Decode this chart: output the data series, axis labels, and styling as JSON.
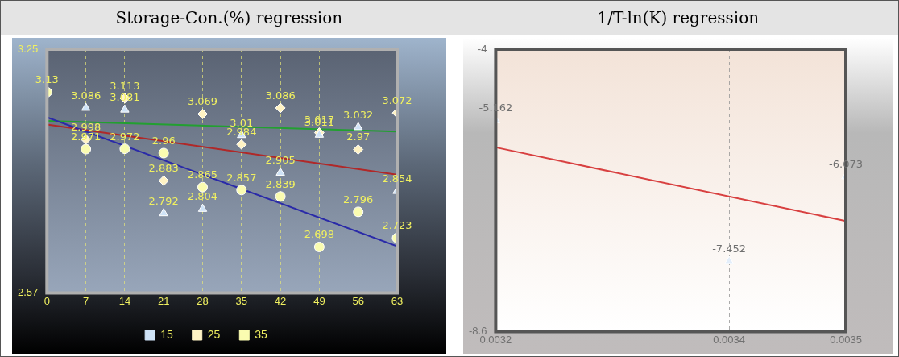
{
  "chart_data": [
    {
      "type": "scatter",
      "title": "Storage-Con.(%) regression",
      "x": [
        0,
        7,
        14,
        21,
        28,
        35,
        42,
        49,
        56,
        63
      ],
      "xlim": [
        0,
        63
      ],
      "xticks": [
        0,
        7,
        14,
        21,
        28,
        35,
        42,
        49,
        56,
        63
      ],
      "ylim": [
        2.57,
        3.25
      ],
      "yticks": [
        2.57,
        3.25
      ],
      "grid": "x",
      "legend": "bottom",
      "series": [
        {
          "name": "15",
          "color": "#cfe3f7",
          "marker": "triangle",
          "values": [
            null,
            3.086,
            3.081,
            2.792,
            2.804,
            3.01,
            2.905,
            3.011,
            3.032,
            2.854
          ],
          "value_labels": [
            null,
            "3.086",
            "3.081",
            "2.792",
            "2.804",
            "3.01",
            "2.905",
            "3.011",
            "3.032",
            "2.854"
          ]
        },
        {
          "name": "25",
          "color": "#fff3c4",
          "marker": "diamond",
          "values": [
            null,
            2.998,
            3.113,
            2.883,
            3.069,
            2.984,
            3.086,
            3.017,
            2.97,
            3.072
          ],
          "value_labels": [
            null,
            "2.998",
            "3.113",
            "2.883",
            "3.069",
            "2.984",
            "3.086",
            "3.017",
            "2.97",
            "3.072"
          ]
        },
        {
          "name": "35",
          "color": "#fafcb0",
          "marker": "circle",
          "values": [
            3.13,
            2.971,
            2.972,
            2.96,
            2.865,
            2.857,
            2.839,
            2.698,
            2.796,
            2.723
          ],
          "value_labels": [
            "3.13",
            "2.971",
            "2.972",
            "2.96",
            "2.865",
            "2.857",
            "2.839",
            "2.698",
            "2.796",
            "2.723"
          ]
        },
        {
          "type": "line",
          "color": "#2a2aa8",
          "marker": "none",
          "x": [
            0,
            63
          ],
          "values": [
            3.06,
            2.7
          ]
        },
        {
          "type": "line",
          "color": "#b02828",
          "marker": "none",
          "x": [
            0,
            63
          ],
          "values": [
            3.04,
            2.9
          ]
        },
        {
          "type": "line",
          "color": "#22a030",
          "marker": "none",
          "x": [
            0,
            63
          ],
          "values": [
            3.05,
            3.02
          ]
        }
      ]
    },
    {
      "type": "scatter",
      "title": "1/T-ln(K) regression",
      "x": [
        0.0032,
        0.0034,
        0.0035
      ],
      "xlim": [
        0.0032,
        0.0035
      ],
      "xticks": [
        0.0032,
        0.0034,
        0.0035
      ],
      "ylim": [
        -8.6,
        -4
      ],
      "yticks": [
        -8.6,
        -4
      ],
      "grid": "x",
      "series": [
        {
          "color": "#e4eefa",
          "marker": "triangle",
          "values": [
            -5.162,
            -7.452,
            -6.073
          ],
          "value_labels": [
            "-5.162",
            "-7.452",
            "-6.073"
          ]
        },
        {
          "type": "line",
          "color": "#d84040",
          "marker": "none",
          "x": [
            0.0032,
            0.0035
          ],
          "values": [
            -5.6,
            -6.8
          ]
        }
      ]
    }
  ]
}
